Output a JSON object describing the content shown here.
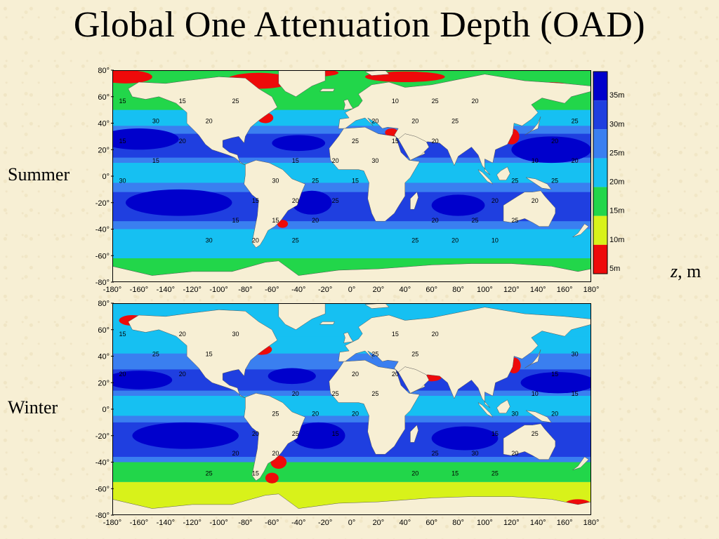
{
  "title": "Global One Attenuation Depth (OAD)",
  "z_label_var": "z",
  "z_label_unit": ", m",
  "panels": [
    {
      "label": "Summer"
    },
    {
      "label": "Winter"
    }
  ],
  "lat_ticks": [
    "80°",
    "60°",
    "40°",
    "20°",
    "0°",
    "-20°",
    "-40°",
    "-60°",
    "-80°"
  ],
  "lon_ticks": [
    "-180°",
    "-160°",
    "-140°",
    "-120°",
    "-100°",
    "-80°",
    "-60°",
    "-40°",
    "-20°",
    "0°",
    "20°",
    "40°",
    "60°",
    "80°",
    "100°",
    "120°",
    "140°",
    "160°",
    "180°"
  ],
  "colorbar": {
    "levels": [
      "35m",
      "30m",
      "25m",
      "20m",
      "15m",
      "10m",
      "5m"
    ],
    "colors": [
      "#0000cc",
      "#1f3fe0",
      "#3a7ff0",
      "#16c0f2",
      "#22d64a",
      "#d8f21a",
      "#ee0a0a"
    ]
  },
  "contour_labels_summer": [
    "15",
    "15",
    "20",
    "25",
    "30",
    "25",
    "20",
    "15",
    "10",
    "10",
    "15",
    "20",
    "25",
    "30",
    "25",
    "20",
    "15",
    "20",
    "25",
    "30",
    "25",
    "20",
    "15",
    "20",
    "25",
    "20",
    "15",
    "20",
    "25",
    "20",
    "15",
    "20",
    "25",
    "30",
    "25",
    "20",
    "15",
    "10",
    "20",
    "25",
    "20",
    "15",
    "20",
    "25",
    "30",
    "25",
    "20"
  ],
  "contour_labels_winter": [
    "15",
    "20",
    "25",
    "30",
    "25",
    "20",
    "15",
    "20",
    "15",
    "10",
    "20",
    "25",
    "30",
    "25",
    "20",
    "15",
    "20",
    "25",
    "30",
    "25",
    "20",
    "15",
    "20",
    "25",
    "20",
    "15",
    "20",
    "25",
    "20",
    "15",
    "20",
    "25",
    "30",
    "25",
    "20",
    "15",
    "20",
    "25",
    "20",
    "15"
  ]
}
